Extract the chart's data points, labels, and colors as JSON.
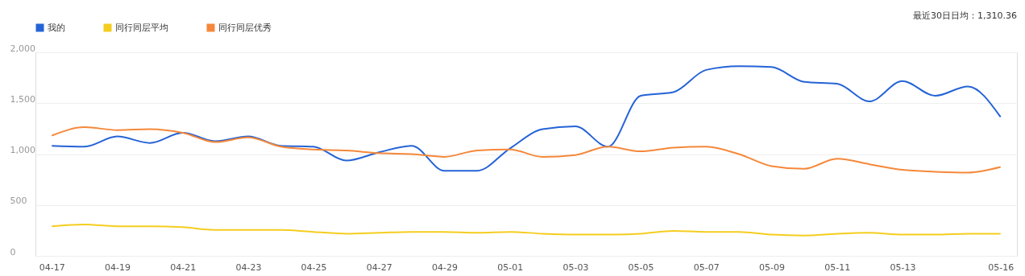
{
  "chart_data": {
    "type": "line",
    "categories": [
      "04-17",
      null,
      "04-19",
      null,
      "04-21",
      null,
      "04-23",
      null,
      "04-25",
      null,
      "04-27",
      null,
      "04-29",
      null,
      "05-01",
      null,
      "05-03",
      null,
      "05-05",
      null,
      "05-07",
      null,
      "05-09",
      null,
      "05-11",
      null,
      "05-13",
      null,
      null,
      "05-16"
    ],
    "series": [
      {
        "name": "我的",
        "color": "#2563d6",
        "values": [
          1082,
          1073,
          1173,
          1109,
          1209,
          1127,
          1173,
          1082,
          1073,
          936,
          1018,
          1082,
          836,
          836,
          1055,
          1245,
          1273,
          1073,
          1573,
          1609,
          1827,
          1864,
          1855,
          1709,
          1691,
          1518,
          1718,
          1573,
          1664,
          1364
        ]
      },
      {
        "name": "同行同层平均",
        "color": "#f5cd1f",
        "values": [
          291,
          309,
          291,
          291,
          282,
          255,
          255,
          255,
          236,
          218,
          227,
          236,
          236,
          227,
          236,
          218,
          209,
          209,
          218,
          245,
          236,
          236,
          209,
          200,
          218,
          227,
          209,
          209,
          218,
          218
        ]
      },
      {
        "name": "同行同层优秀",
        "color": "#f5883a",
        "values": [
          1182,
          1264,
          1236,
          1245,
          1209,
          1118,
          1164,
          1073,
          1045,
          1036,
          1009,
          1000,
          973,
          1036,
          1045,
          973,
          991,
          1073,
          1027,
          1064,
          1073,
          1000,
          882,
          855,
          955,
          900,
          845,
          827,
          818,
          873
        ]
      }
    ],
    "ylim": [
      0,
      2000
    ],
    "yticks": [
      0,
      500,
      {
        "value": 1000,
        "label": "1,000"
      },
      {
        "value": 1500,
        "label": "1,500"
      },
      {
        "value": 2000,
        "label": "2,000"
      }
    ],
    "grid": "y",
    "legend": "top left",
    "marker": "none",
    "line_style": "solid",
    "annotations": [
      "最近30日日均：1,310.36"
    ]
  }
}
